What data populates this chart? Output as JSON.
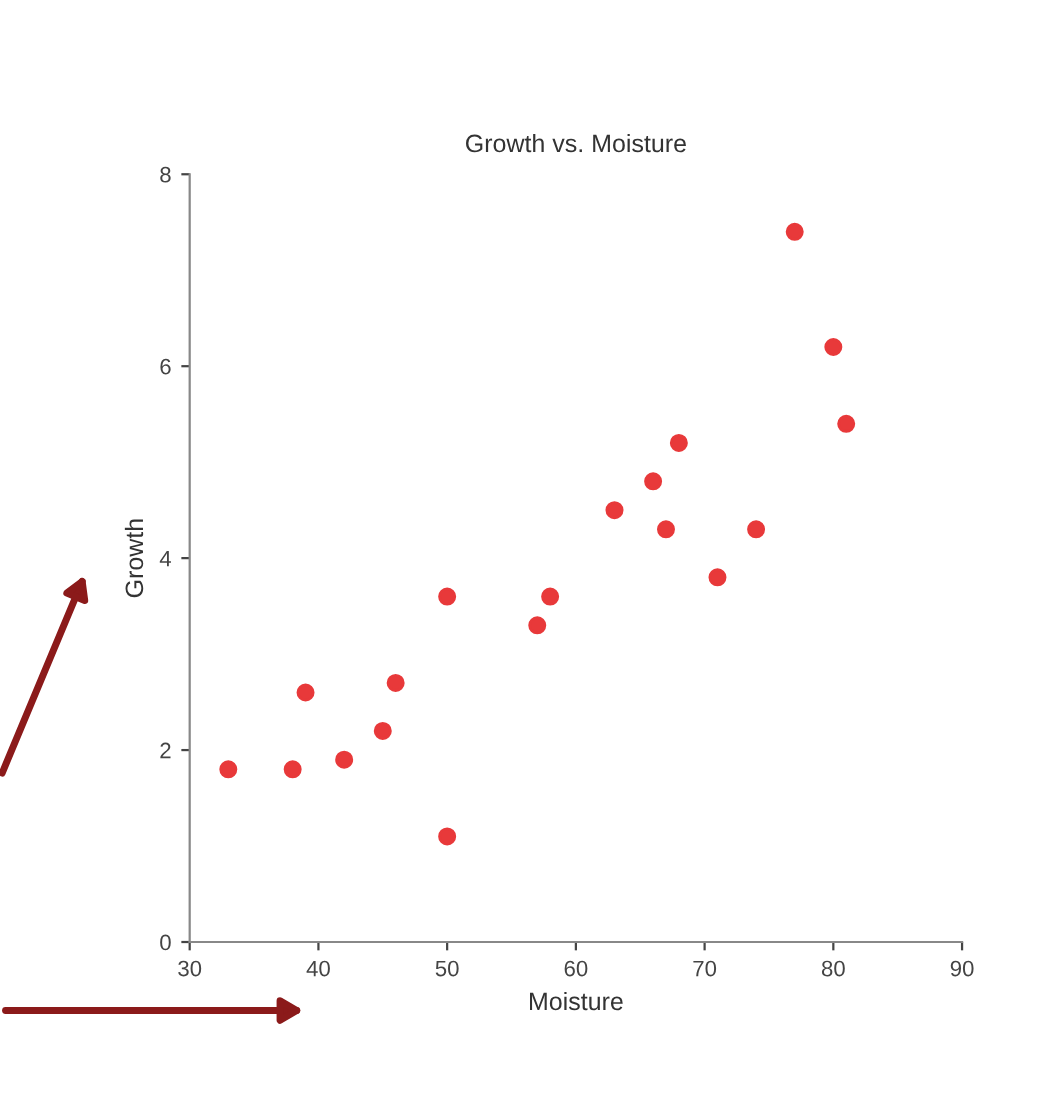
{
  "chart_data": {
    "type": "scatter",
    "title": "Growth vs. Moisture",
    "xlabel": "Moisture",
    "ylabel": "Growth",
    "x": [
      33,
      38,
      39,
      42,
      45,
      46,
      50,
      50,
      57,
      58,
      63,
      66,
      67,
      68,
      71,
      74,
      77,
      80,
      81
    ],
    "series": [
      {
        "color": "#e8393a",
        "values": [
          1.8,
          1.8,
          2.6,
          1.9,
          2.2,
          2.7,
          1.1,
          3.6,
          3.3,
          3.6,
          4.5,
          4.8,
          4.3,
          5.2,
          3.8,
          4.3,
          7.4,
          6.2,
          5.4
        ]
      }
    ],
    "xlim": [
      30,
      90
    ],
    "xticks": [
      30,
      40,
      50,
      60,
      70,
      80,
      90
    ],
    "ylim": [
      0,
      8
    ],
    "yticks": [
      0,
      2,
      4,
      6,
      8
    ],
    "marker": "circle"
  }
}
